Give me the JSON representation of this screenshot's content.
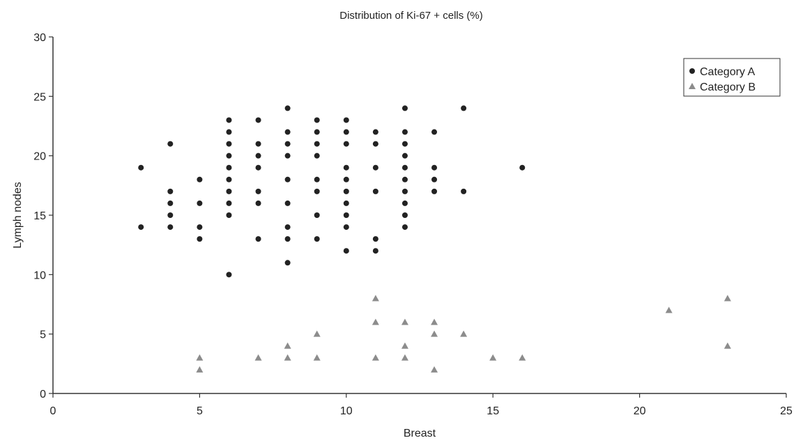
{
  "chart_data": {
    "type": "scatter",
    "title": "Distribution of Ki-67 + cells (%)",
    "xlabel": "Breast",
    "ylabel": "Lymph nodes",
    "xlim": [
      0,
      25
    ],
    "ylim": [
      0,
      30
    ],
    "xticks": [
      "0",
      "5",
      "10",
      "15",
      "20",
      "25"
    ],
    "yticks": [
      "0",
      "5",
      "10",
      "15",
      "20",
      "25",
      "30"
    ],
    "grid": false,
    "legend_position": "top-right",
    "series": [
      {
        "name": "Category A",
        "marker": "circle",
        "color": "#222222",
        "points": [
          [
            3,
            19
          ],
          [
            3,
            14
          ],
          [
            4,
            21
          ],
          [
            4,
            17
          ],
          [
            4,
            16
          ],
          [
            4,
            15
          ],
          [
            4,
            14
          ],
          [
            5,
            18
          ],
          [
            5,
            16
          ],
          [
            5,
            14
          ],
          [
            5,
            13
          ],
          [
            6,
            23
          ],
          [
            6,
            22
          ],
          [
            6,
            21
          ],
          [
            6,
            20
          ],
          [
            6,
            19
          ],
          [
            6,
            18
          ],
          [
            6,
            17
          ],
          [
            6,
            16
          ],
          [
            6,
            15
          ],
          [
            6,
            10
          ],
          [
            7,
            23
          ],
          [
            7,
            21
          ],
          [
            7,
            20
          ],
          [
            7,
            19
          ],
          [
            7,
            17
          ],
          [
            7,
            16
          ],
          [
            7,
            13
          ],
          [
            8,
            24
          ],
          [
            8,
            22
          ],
          [
            8,
            21
          ],
          [
            8,
            20
          ],
          [
            8,
            18
          ],
          [
            8,
            16
          ],
          [
            8,
            14
          ],
          [
            8,
            13
          ],
          [
            8,
            11
          ],
          [
            9,
            23
          ],
          [
            9,
            22
          ],
          [
            9,
            21
          ],
          [
            9,
            20
          ],
          [
            9,
            18
          ],
          [
            9,
            17
          ],
          [
            9,
            15
          ],
          [
            9,
            13
          ],
          [
            10,
            23
          ],
          [
            10,
            22
          ],
          [
            10,
            21
          ],
          [
            10,
            19
          ],
          [
            10,
            18
          ],
          [
            10,
            17
          ],
          [
            10,
            16
          ],
          [
            10,
            15
          ],
          [
            10,
            14
          ],
          [
            10,
            12
          ],
          [
            11,
            22
          ],
          [
            11,
            21
          ],
          [
            11,
            19
          ],
          [
            11,
            17
          ],
          [
            11,
            13
          ],
          [
            11,
            12
          ],
          [
            12,
            24
          ],
          [
            12,
            22
          ],
          [
            12,
            21
          ],
          [
            12,
            20
          ],
          [
            12,
            19
          ],
          [
            12,
            18
          ],
          [
            12,
            17
          ],
          [
            12,
            16
          ],
          [
            12,
            15
          ],
          [
            12,
            14
          ],
          [
            13,
            22
          ],
          [
            13,
            19
          ],
          [
            13,
            18
          ],
          [
            13,
            17
          ],
          [
            14,
            24
          ],
          [
            14,
            17
          ],
          [
            16,
            19
          ]
        ]
      },
      {
        "name": "Category B",
        "marker": "triangle",
        "color": "#8c8c8c",
        "points": [
          [
            5,
            3
          ],
          [
            5,
            2
          ],
          [
            7,
            3
          ],
          [
            8,
            4
          ],
          [
            8,
            3
          ],
          [
            9,
            5
          ],
          [
            9,
            3
          ],
          [
            11,
            8
          ],
          [
            11,
            6
          ],
          [
            11,
            3
          ],
          [
            12,
            6
          ],
          [
            12,
            4
          ],
          [
            12,
            3
          ],
          [
            13,
            6
          ],
          [
            13,
            5
          ],
          [
            13,
            2
          ],
          [
            14,
            5
          ],
          [
            15,
            3
          ],
          [
            16,
            3
          ],
          [
            21,
            7
          ],
          [
            23,
            8
          ],
          [
            23,
            4
          ]
        ]
      }
    ]
  }
}
